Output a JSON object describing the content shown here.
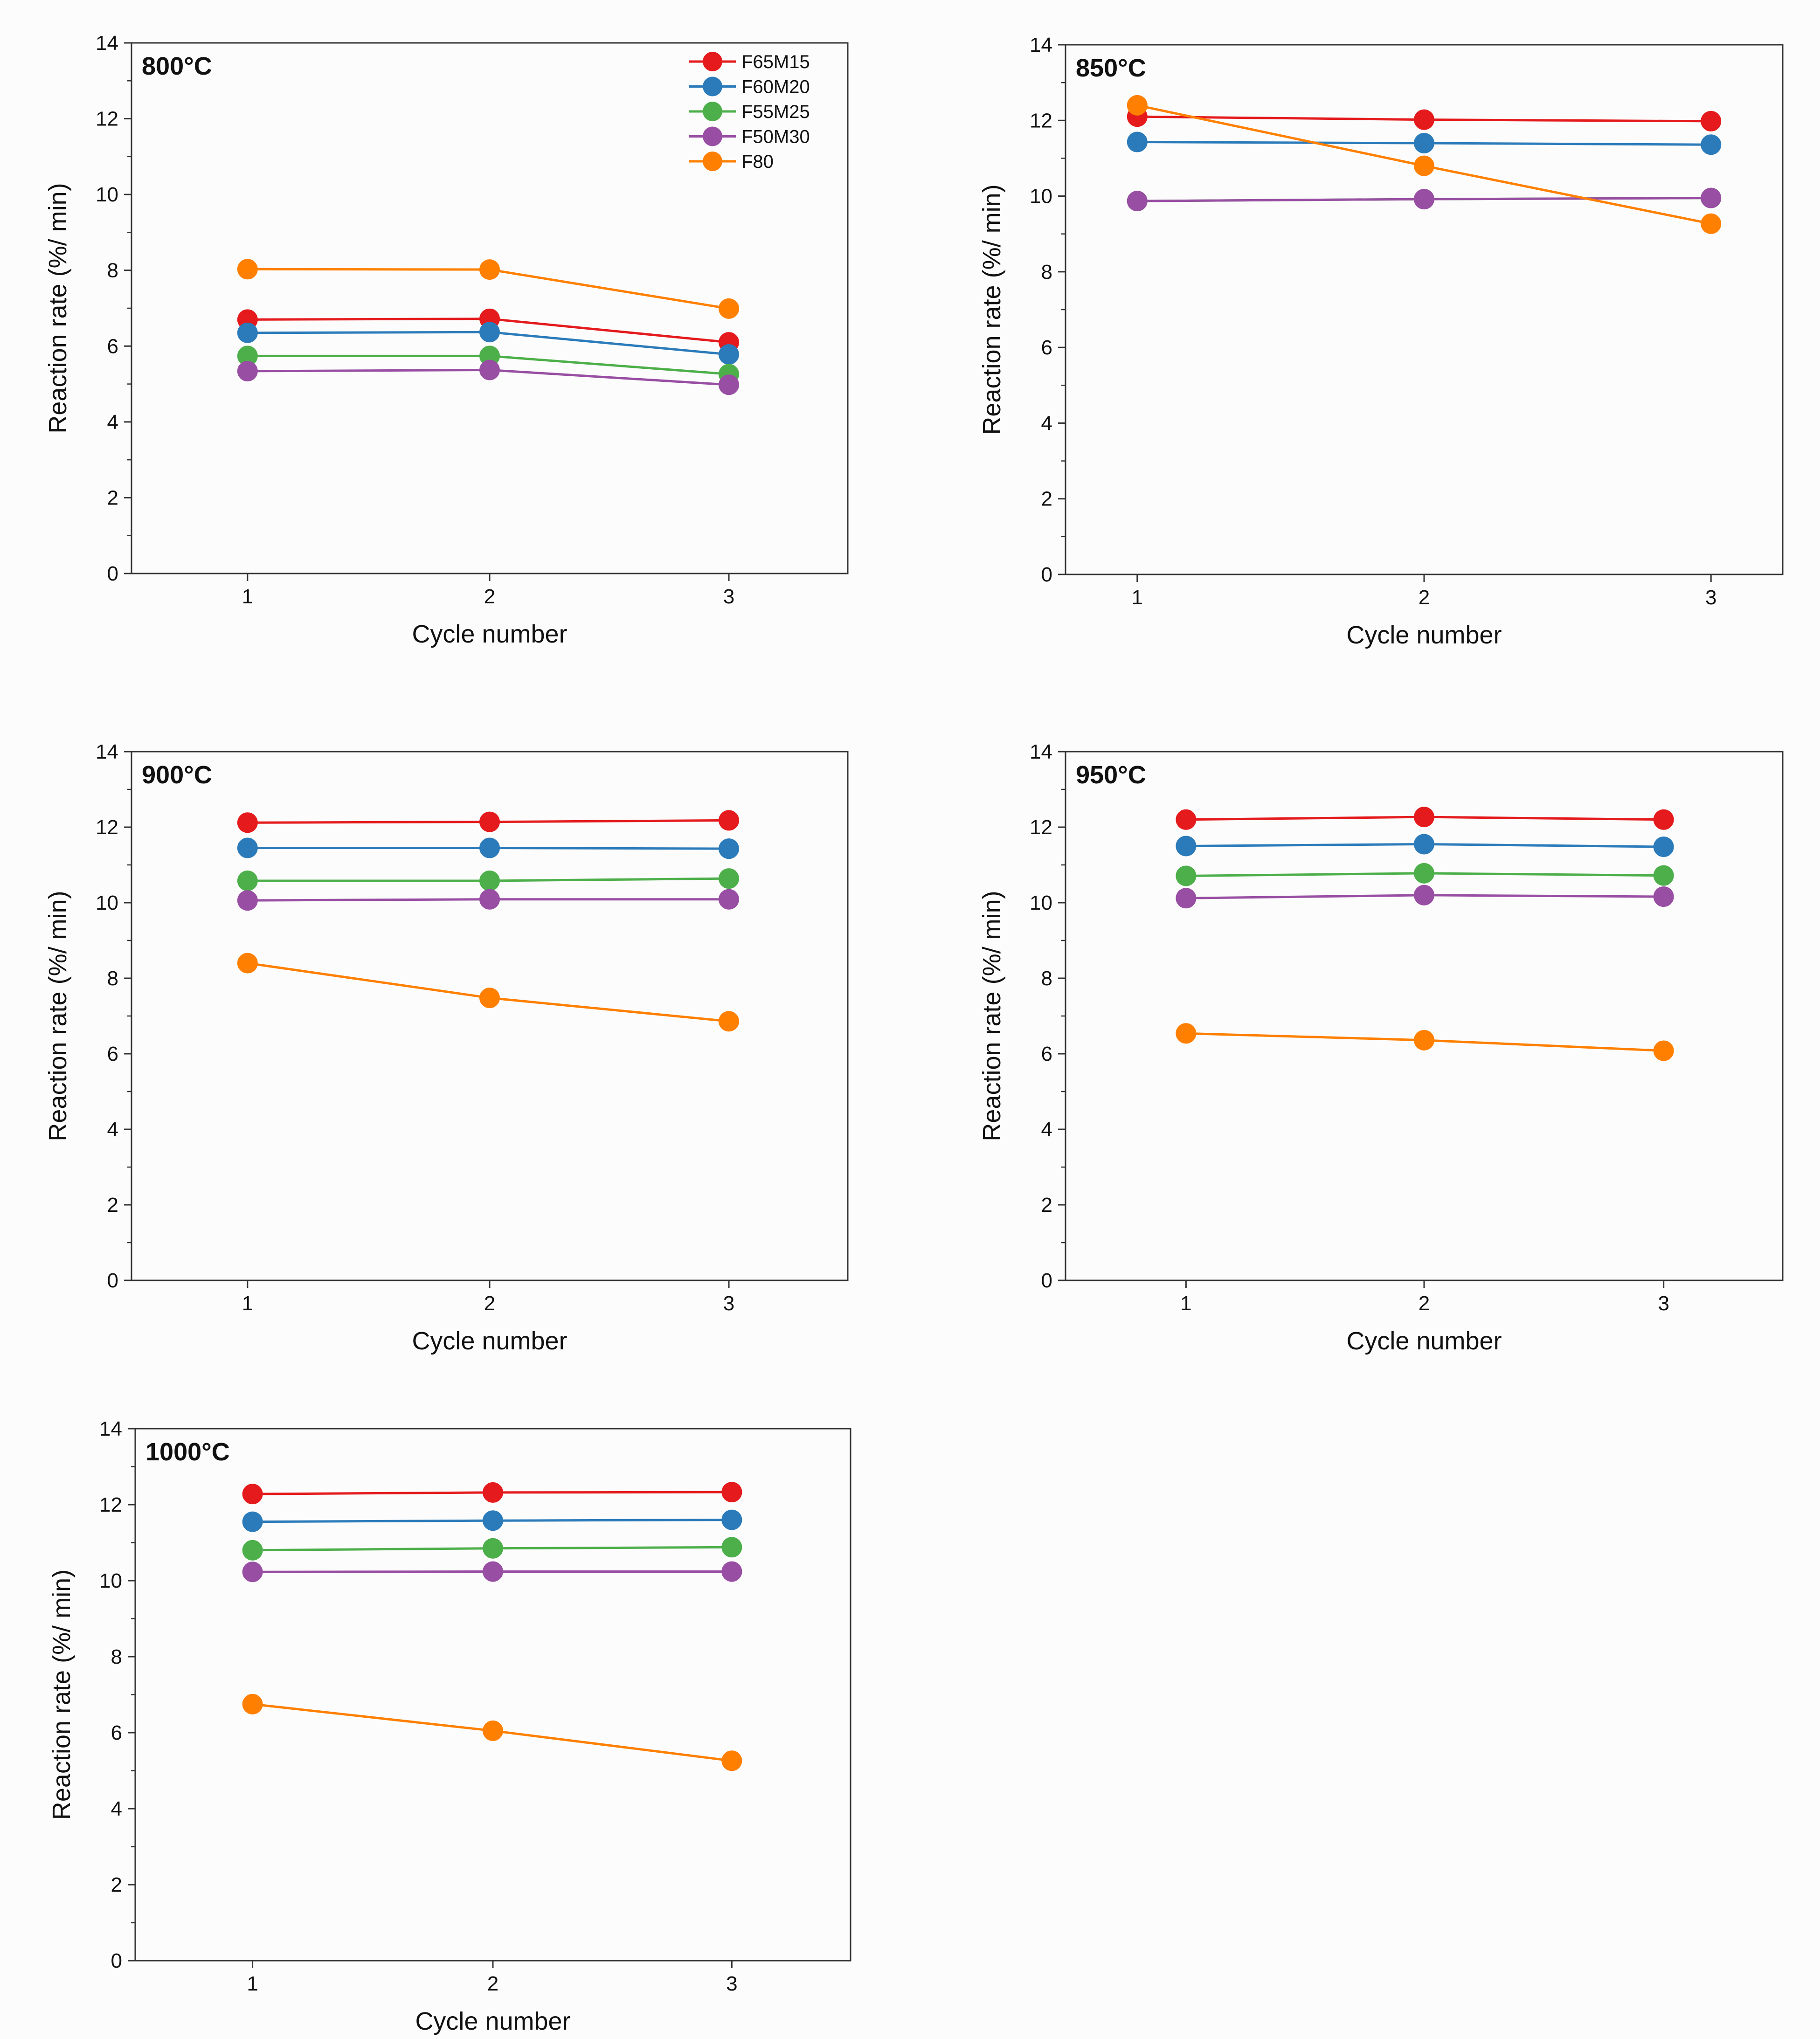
{
  "chart_data": [
    {
      "type": "line",
      "title": "800°C",
      "xlabel": "Cycle number",
      "ylabel": "Reaction rate (%/ min)",
      "categories": [
        "1",
        "2",
        "3"
      ],
      "yticks": [
        "0",
        "2",
        "4",
        "6",
        "8",
        "10",
        "12",
        "14"
      ],
      "ylim": [
        0,
        14
      ],
      "legend": "top-right",
      "series": [
        {
          "name": "F65M15",
          "color": "#e41a1c",
          "values": [
            6.7,
            6.72,
            6.1
          ]
        },
        {
          "name": "F60M20",
          "color": "#2b7bba",
          "values": [
            6.35,
            6.37,
            5.78
          ]
        },
        {
          "name": "F55M25",
          "color": "#4daf4a",
          "values": [
            5.74,
            5.74,
            5.26
          ]
        },
        {
          "name": "F50M30",
          "color": "#984ea3",
          "values": [
            5.34,
            5.37,
            4.98
          ]
        },
        {
          "name": "F80",
          "color": "#ff7f00",
          "values": [
            8.03,
            8.02,
            6.99
          ]
        }
      ]
    },
    {
      "type": "line",
      "title": "850°C",
      "xlabel": "Cycle number",
      "ylabel": "Reaction rate (%/ min)",
      "categories": [
        "1",
        "2",
        "3"
      ],
      "yticks": [
        "0",
        "2",
        "4",
        "6",
        "8",
        "10",
        "12",
        "14"
      ],
      "ylim": [
        0,
        14
      ],
      "series": [
        {
          "name": "F65M15",
          "color": "#e41a1c",
          "values": [
            12.1,
            12.02,
            11.98
          ]
        },
        {
          "name": "F60M20",
          "color": "#2b7bba",
          "values": [
            11.43,
            11.4,
            11.36
          ]
        },
        {
          "name": "F55M25",
          "color": "#4daf4a",
          "values": [
            9.87,
            9.92,
            9.95
          ]
        },
        {
          "name": "F50M30",
          "color": "#984ea3",
          "values": [
            9.87,
            9.92,
            9.95
          ]
        },
        {
          "name": "F80",
          "color": "#ff7f00",
          "values": [
            12.4,
            10.8,
            9.27
          ]
        }
      ]
    },
    {
      "type": "line",
      "title": "900°C",
      "xlabel": "Cycle number",
      "ylabel": "Reaction rate (%/ min)",
      "categories": [
        "1",
        "2",
        "3"
      ],
      "yticks": [
        "0",
        "2",
        "4",
        "6",
        "8",
        "10",
        "12",
        "14"
      ],
      "ylim": [
        0,
        14
      ],
      "series": [
        {
          "name": "F65M15",
          "color": "#e41a1c",
          "values": [
            12.12,
            12.14,
            12.18
          ]
        },
        {
          "name": "F60M20",
          "color": "#2b7bba",
          "values": [
            11.45,
            11.45,
            11.43
          ]
        },
        {
          "name": "F55M25",
          "color": "#4daf4a",
          "values": [
            10.58,
            10.58,
            10.64
          ]
        },
        {
          "name": "F50M30",
          "color": "#984ea3",
          "values": [
            10.06,
            10.09,
            10.09
          ]
        },
        {
          "name": "F80",
          "color": "#ff7f00",
          "values": [
            8.4,
            7.48,
            6.86
          ]
        }
      ]
    },
    {
      "type": "line",
      "title": "950°C",
      "xlabel": "Cycle number",
      "ylabel": "Reaction rate (%/ min)",
      "categories": [
        "1",
        "2",
        "3"
      ],
      "yticks": [
        "0",
        "2",
        "4",
        "6",
        "8",
        "10",
        "12",
        "14"
      ],
      "ylim": [
        0,
        14
      ],
      "series": [
        {
          "name": "F65M15",
          "color": "#e41a1c",
          "values": [
            12.2,
            12.27,
            12.2
          ]
        },
        {
          "name": "F60M20",
          "color": "#2b7bba",
          "values": [
            11.5,
            11.55,
            11.48
          ]
        },
        {
          "name": "F55M25",
          "color": "#4daf4a",
          "values": [
            10.71,
            10.78,
            10.72
          ]
        },
        {
          "name": "F50M30",
          "color": "#984ea3",
          "values": [
            10.12,
            10.2,
            10.16
          ]
        },
        {
          "name": "F80",
          "color": "#ff7f00",
          "values": [
            6.54,
            6.36,
            6.08
          ]
        }
      ]
    },
    {
      "type": "line",
      "title": "1000°C",
      "xlabel": "Cycle number",
      "ylabel": "Reaction rate (%/ min)",
      "categories": [
        "1",
        "2",
        "3"
      ],
      "yticks": [
        "0",
        "2",
        "4",
        "6",
        "8",
        "10",
        "12",
        "14"
      ],
      "ylim": [
        0,
        14
      ],
      "series": [
        {
          "name": "F65M15",
          "color": "#e41a1c",
          "values": [
            12.28,
            12.32,
            12.33
          ]
        },
        {
          "name": "F60M20",
          "color": "#2b7bba",
          "values": [
            11.55,
            11.58,
            11.6
          ]
        },
        {
          "name": "F55M25",
          "color": "#4daf4a",
          "values": [
            10.8,
            10.85,
            10.88
          ]
        },
        {
          "name": "F50M30",
          "color": "#984ea3",
          "values": [
            10.23,
            10.24,
            10.24
          ]
        },
        {
          "name": "F80",
          "color": "#ff7f00",
          "values": [
            6.75,
            6.05,
            5.26
          ]
        }
      ]
    }
  ]
}
